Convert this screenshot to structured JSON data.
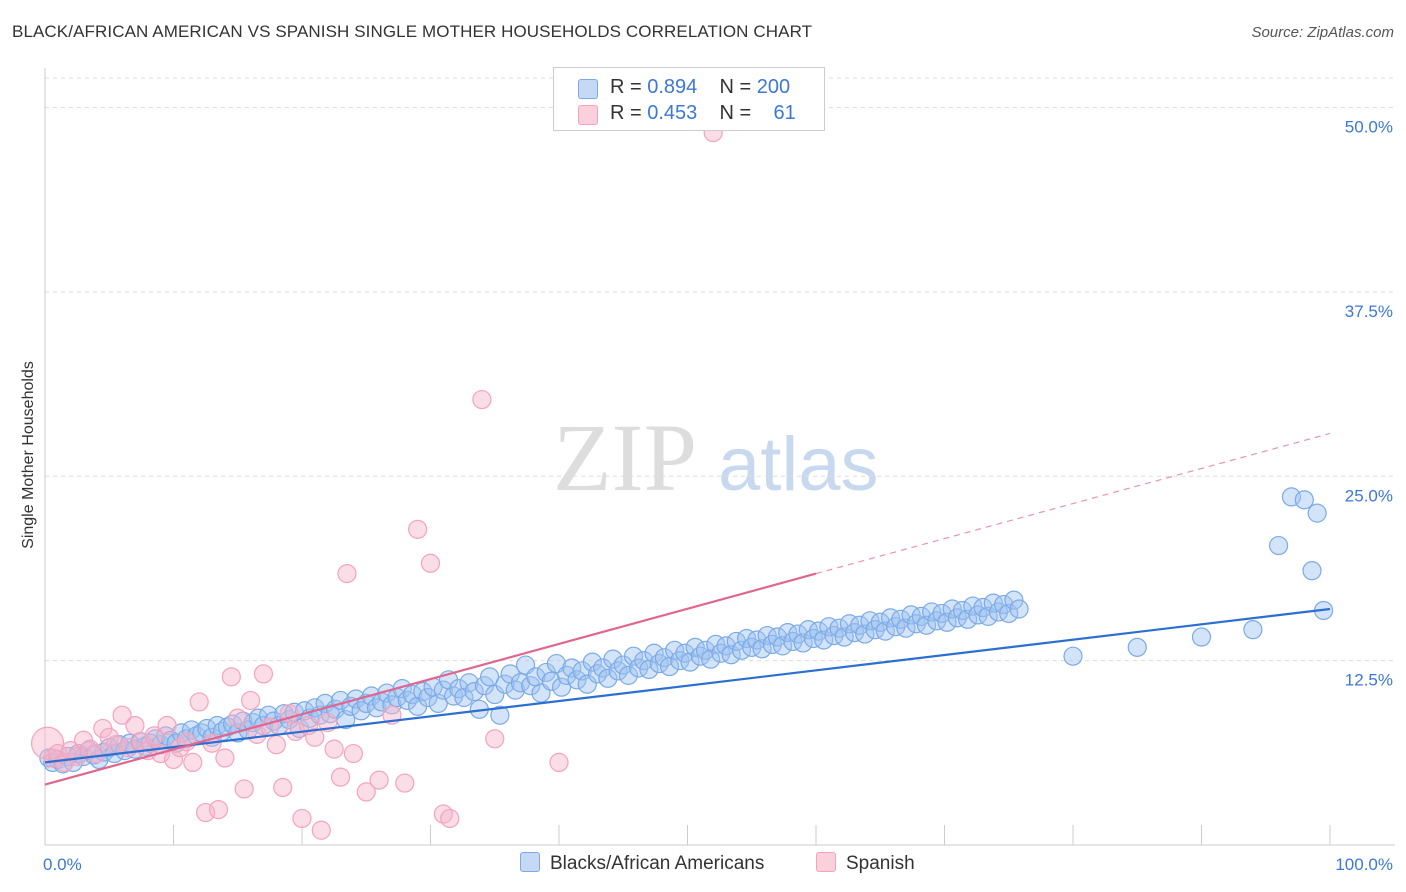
{
  "chart_data": {
    "type": "scatter",
    "title": "BLACK/AFRICAN AMERICAN VS SPANISH SINGLE MOTHER HOUSEHOLDS CORRELATION CHART",
    "source": "Source: ZipAtlas.com",
    "ylabel": "Single Mother Households",
    "xlim": [
      0,
      100
    ],
    "ylim": [
      0,
      52
    ],
    "x_tick_labels": [
      "0.0%",
      "100.0%"
    ],
    "y_ticks": [
      12.5,
      25.0,
      37.5,
      50.0
    ],
    "y_tick_labels": [
      "12.5%",
      "25.0%",
      "37.5%",
      "50.0%"
    ],
    "grid": true,
    "legend_position": "top-center",
    "legend_stats": [
      {
        "r_label": "R =",
        "r_value": "0.894",
        "n_label": "N =",
        "n_value": "200"
      },
      {
        "r_label": "R =",
        "r_value": "0.453",
        "n_label": "N =",
        "n_value": "61"
      }
    ],
    "series": [
      {
        "name": "Blacks/African Americans",
        "color": "#7aaae8",
        "line_color": "#2c6fd1",
        "trend": {
          "x": [
            0,
            100
          ],
          "y": [
            5.6,
            16.0
          ]
        },
        "points": [
          [
            0.3,
            5.9
          ],
          [
            0.6,
            5.6
          ],
          [
            1.0,
            5.8
          ],
          [
            1.4,
            5.5
          ],
          [
            1.8,
            6.0
          ],
          [
            2.2,
            5.6
          ],
          [
            2.6,
            6.2
          ],
          [
            3.0,
            6.0
          ],
          [
            3.4,
            6.4
          ],
          [
            3.8,
            6.1
          ],
          [
            4.2,
            5.8
          ],
          [
            4.6,
            6.3
          ],
          [
            5.0,
            6.6
          ],
          [
            5.4,
            6.2
          ],
          [
            5.8,
            6.8
          ],
          [
            6.2,
            6.4
          ],
          [
            6.6,
            6.9
          ],
          [
            7.0,
            6.5
          ],
          [
            7.4,
            7.0
          ],
          [
            7.8,
            6.7
          ],
          [
            8.2,
            6.9
          ],
          [
            8.6,
            7.2
          ],
          [
            9.0,
            6.8
          ],
          [
            9.4,
            7.4
          ],
          [
            9.8,
            7.1
          ],
          [
            10.2,
            6.9
          ],
          [
            10.6,
            7.6
          ],
          [
            11.0,
            7.2
          ],
          [
            11.4,
            7.8
          ],
          [
            11.8,
            7.4
          ],
          [
            12.2,
            7.6
          ],
          [
            12.6,
            7.9
          ],
          [
            13.0,
            7.3
          ],
          [
            13.4,
            8.1
          ],
          [
            13.8,
            7.7
          ],
          [
            14.2,
            8.0
          ],
          [
            14.6,
            8.2
          ],
          [
            15.0,
            7.6
          ],
          [
            15.4,
            8.4
          ],
          [
            15.8,
            7.8
          ],
          [
            16.2,
            8.3
          ],
          [
            16.6,
            8.6
          ],
          [
            17.0,
            8.1
          ],
          [
            17.4,
            8.8
          ],
          [
            17.8,
            8.4
          ],
          [
            18.2,
            8.1
          ],
          [
            18.6,
            8.9
          ],
          [
            19.0,
            8.5
          ],
          [
            19.4,
            9.0
          ],
          [
            19.8,
            7.9
          ],
          [
            20.2,
            9.1
          ],
          [
            20.6,
            8.6
          ],
          [
            21.0,
            9.3
          ],
          [
            21.4,
            8.8
          ],
          [
            21.8,
            9.6
          ],
          [
            22.2,
            8.9
          ],
          [
            22.6,
            9.2
          ],
          [
            23.0,
            9.8
          ],
          [
            23.4,
            8.5
          ],
          [
            23.8,
            9.4
          ],
          [
            24.2,
            9.9
          ],
          [
            24.6,
            9.1
          ],
          [
            25.0,
            9.6
          ],
          [
            25.4,
            10.1
          ],
          [
            25.8,
            9.3
          ],
          [
            26.2,
            9.7
          ],
          [
            26.6,
            10.3
          ],
          [
            27.0,
            9.5
          ],
          [
            27.4,
            10.0
          ],
          [
            27.8,
            10.6
          ],
          [
            28.2,
            9.8
          ],
          [
            28.6,
            10.2
          ],
          [
            29.0,
            9.4
          ],
          [
            29.4,
            10.4
          ],
          [
            29.8,
            10.0
          ],
          [
            30.2,
            10.7
          ],
          [
            30.6,
            9.6
          ],
          [
            31.0,
            10.5
          ],
          [
            31.4,
            11.2
          ],
          [
            31.8,
            10.1
          ],
          [
            32.2,
            10.6
          ],
          [
            32.6,
            10.0
          ],
          [
            33.0,
            11.0
          ],
          [
            33.4,
            10.4
          ],
          [
            33.8,
            9.2
          ],
          [
            34.2,
            10.8
          ],
          [
            34.6,
            11.4
          ],
          [
            35.0,
            10.2
          ],
          [
            35.4,
            8.8
          ],
          [
            35.8,
            10.9
          ],
          [
            36.2,
            11.6
          ],
          [
            36.6,
            10.5
          ],
          [
            37.0,
            11.0
          ],
          [
            37.4,
            12.2
          ],
          [
            37.8,
            10.8
          ],
          [
            38.2,
            11.4
          ],
          [
            38.6,
            10.3
          ],
          [
            39.0,
            11.7
          ],
          [
            39.4,
            11.1
          ],
          [
            39.8,
            12.3
          ],
          [
            40.2,
            10.7
          ],
          [
            40.6,
            11.5
          ],
          [
            41.0,
            12.0
          ],
          [
            41.4,
            11.2
          ],
          [
            41.8,
            11.8
          ],
          [
            42.2,
            10.9
          ],
          [
            42.6,
            12.4
          ],
          [
            43.0,
            11.6
          ],
          [
            43.4,
            12.0
          ],
          [
            43.8,
            11.3
          ],
          [
            44.2,
            12.6
          ],
          [
            44.6,
            11.8
          ],
          [
            45.0,
            12.2
          ],
          [
            45.4,
            11.5
          ],
          [
            45.8,
            12.8
          ],
          [
            46.2,
            12.0
          ],
          [
            46.6,
            12.5
          ],
          [
            47.0,
            11.9
          ],
          [
            47.4,
            13.0
          ],
          [
            47.8,
            12.3
          ],
          [
            48.2,
            12.7
          ],
          [
            48.6,
            12.1
          ],
          [
            49.0,
            13.2
          ],
          [
            49.4,
            12.5
          ],
          [
            49.8,
            13.0
          ],
          [
            50.2,
            12.4
          ],
          [
            50.6,
            13.4
          ],
          [
            51.0,
            12.8
          ],
          [
            51.4,
            13.2
          ],
          [
            51.8,
            12.6
          ],
          [
            52.2,
            13.6
          ],
          [
            52.6,
            13.0
          ],
          [
            53.0,
            13.5
          ],
          [
            53.4,
            12.9
          ],
          [
            53.8,
            13.8
          ],
          [
            54.2,
            13.2
          ],
          [
            54.6,
            14.0
          ],
          [
            55.0,
            13.4
          ],
          [
            55.4,
            13.9
          ],
          [
            55.8,
            13.3
          ],
          [
            56.2,
            14.2
          ],
          [
            56.6,
            13.6
          ],
          [
            57.0,
            14.1
          ],
          [
            57.4,
            13.5
          ],
          [
            57.8,
            14.4
          ],
          [
            58.2,
            13.8
          ],
          [
            58.6,
            14.3
          ],
          [
            59.0,
            13.7
          ],
          [
            59.4,
            14.6
          ],
          [
            59.8,
            14.0
          ],
          [
            60.2,
            14.5
          ],
          [
            60.6,
            13.9
          ],
          [
            61.0,
            14.8
          ],
          [
            61.4,
            14.2
          ],
          [
            61.8,
            14.7
          ],
          [
            62.2,
            14.1
          ],
          [
            62.6,
            15.0
          ],
          [
            63.0,
            14.4
          ],
          [
            63.4,
            14.9
          ],
          [
            63.8,
            14.3
          ],
          [
            64.2,
            15.2
          ],
          [
            64.6,
            14.6
          ],
          [
            65.0,
            15.1
          ],
          [
            65.4,
            14.5
          ],
          [
            65.8,
            15.4
          ],
          [
            66.2,
            14.8
          ],
          [
            66.6,
            15.3
          ],
          [
            67.0,
            14.7
          ],
          [
            67.4,
            15.6
          ],
          [
            67.8,
            15.0
          ],
          [
            68.2,
            15.5
          ],
          [
            68.6,
            14.9
          ],
          [
            69.0,
            15.8
          ],
          [
            69.4,
            15.2
          ],
          [
            69.8,
            15.7
          ],
          [
            70.2,
            15.1
          ],
          [
            70.6,
            16.0
          ],
          [
            71.0,
            15.4
          ],
          [
            71.4,
            15.9
          ],
          [
            71.8,
            15.3
          ],
          [
            72.2,
            16.2
          ],
          [
            72.6,
            15.6
          ],
          [
            73.0,
            16.1
          ],
          [
            73.4,
            15.5
          ],
          [
            73.8,
            16.4
          ],
          [
            74.2,
            15.8
          ],
          [
            74.6,
            16.3
          ],
          [
            75.0,
            15.7
          ],
          [
            75.4,
            16.6
          ],
          [
            75.8,
            16.0
          ],
          [
            80.0,
            12.8
          ],
          [
            85.0,
            13.4
          ],
          [
            90.0,
            14.1
          ],
          [
            94.0,
            14.6
          ],
          [
            96.0,
            20.3
          ],
          [
            97.0,
            23.6
          ],
          [
            98.0,
            23.4
          ],
          [
            99.0,
            22.5
          ],
          [
            99.5,
            15.9
          ],
          [
            98.6,
            18.6
          ]
        ]
      },
      {
        "name": "Spanish",
        "color": "#f5a3bd",
        "line_color": "#e0668f",
        "trend": {
          "x": [
            0,
            60
          ],
          "y": [
            4.1,
            18.4
          ]
        },
        "trend_extension": {
          "x": [
            60,
            100
          ],
          "y": [
            18.4,
            27.9
          ]
        },
        "points": [
          [
            0.2,
            6.9
          ],
          [
            0.6,
            5.9
          ],
          [
            1.0,
            6.2
          ],
          [
            1.5,
            5.6
          ],
          [
            2.0,
            6.4
          ],
          [
            2.5,
            6.0
          ],
          [
            3.0,
            7.1
          ],
          [
            3.5,
            6.5
          ],
          [
            4.0,
            6.2
          ],
          [
            4.5,
            7.9
          ],
          [
            5.0,
            7.3
          ],
          [
            5.5,
            6.8
          ],
          [
            6.0,
            8.8
          ],
          [
            6.5,
            6.6
          ],
          [
            7.0,
            8.1
          ],
          [
            7.5,
            7.0
          ],
          [
            8.0,
            6.4
          ],
          [
            8.5,
            7.4
          ],
          [
            9.0,
            6.2
          ],
          [
            9.5,
            8.1
          ],
          [
            10.0,
            5.8
          ],
          [
            10.5,
            6.6
          ],
          [
            11.0,
            7.0
          ],
          [
            11.5,
            5.6
          ],
          [
            12.0,
            9.7
          ],
          [
            12.5,
            2.2
          ],
          [
            13.0,
            6.9
          ],
          [
            13.5,
            2.4
          ],
          [
            14.0,
            5.9
          ],
          [
            14.5,
            11.4
          ],
          [
            15.0,
            8.6
          ],
          [
            15.5,
            3.8
          ],
          [
            16.0,
            9.8
          ],
          [
            16.5,
            7.5
          ],
          [
            17.0,
            11.6
          ],
          [
            17.5,
            8.0
          ],
          [
            18.0,
            6.8
          ],
          [
            18.5,
            3.9
          ],
          [
            19.0,
            8.9
          ],
          [
            19.5,
            7.7
          ],
          [
            20.0,
            1.8
          ],
          [
            20.5,
            8.1
          ],
          [
            21.0,
            7.3
          ],
          [
            21.5,
            1.0
          ],
          [
            22.0,
            8.3
          ],
          [
            22.5,
            6.5
          ],
          [
            23.0,
            4.6
          ],
          [
            23.5,
            18.4
          ],
          [
            24.0,
            6.2
          ],
          [
            25.0,
            3.6
          ],
          [
            26.0,
            4.4
          ],
          [
            27.0,
            8.8
          ],
          [
            28.0,
            4.2
          ],
          [
            29.0,
            21.4
          ],
          [
            30.0,
            19.1
          ],
          [
            31.0,
            2.1
          ],
          [
            31.5,
            1.8
          ],
          [
            34.0,
            30.2
          ],
          [
            35.0,
            7.2
          ],
          [
            40.0,
            5.6
          ],
          [
            52.0,
            48.3
          ]
        ]
      }
    ]
  },
  "watermark": {
    "zip": "ZIP",
    "atlas": "atlas"
  }
}
